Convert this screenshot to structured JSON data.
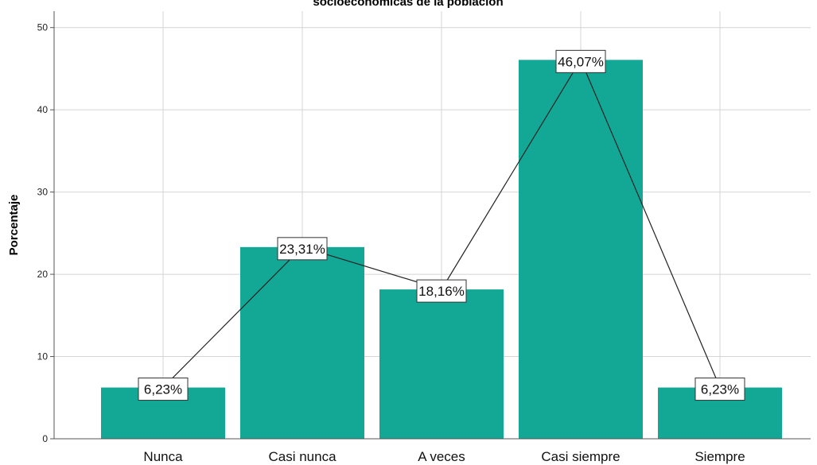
{
  "chart_data": {
    "type": "bar",
    "title": "socioeconómicas de la población",
    "xlabel": "",
    "ylabel": "Porcentaje",
    "ylim": [
      0,
      52
    ],
    "yticks": [
      0,
      10,
      20,
      30,
      40,
      50
    ],
    "categories": [
      "Nunca",
      "Casi nunca",
      "A veces",
      "Casi siempre",
      "Siempre"
    ],
    "values": [
      6.23,
      23.31,
      18.16,
      46.07,
      6.23
    ],
    "data_labels": [
      "6,23%",
      "23,31%",
      "18,16%",
      "46,07%",
      "6,23%"
    ],
    "grid": true,
    "overlay_line": true,
    "bar_color": "#13a896",
    "line_color": "#222222",
    "grid_color": "#d4d4d4"
  }
}
